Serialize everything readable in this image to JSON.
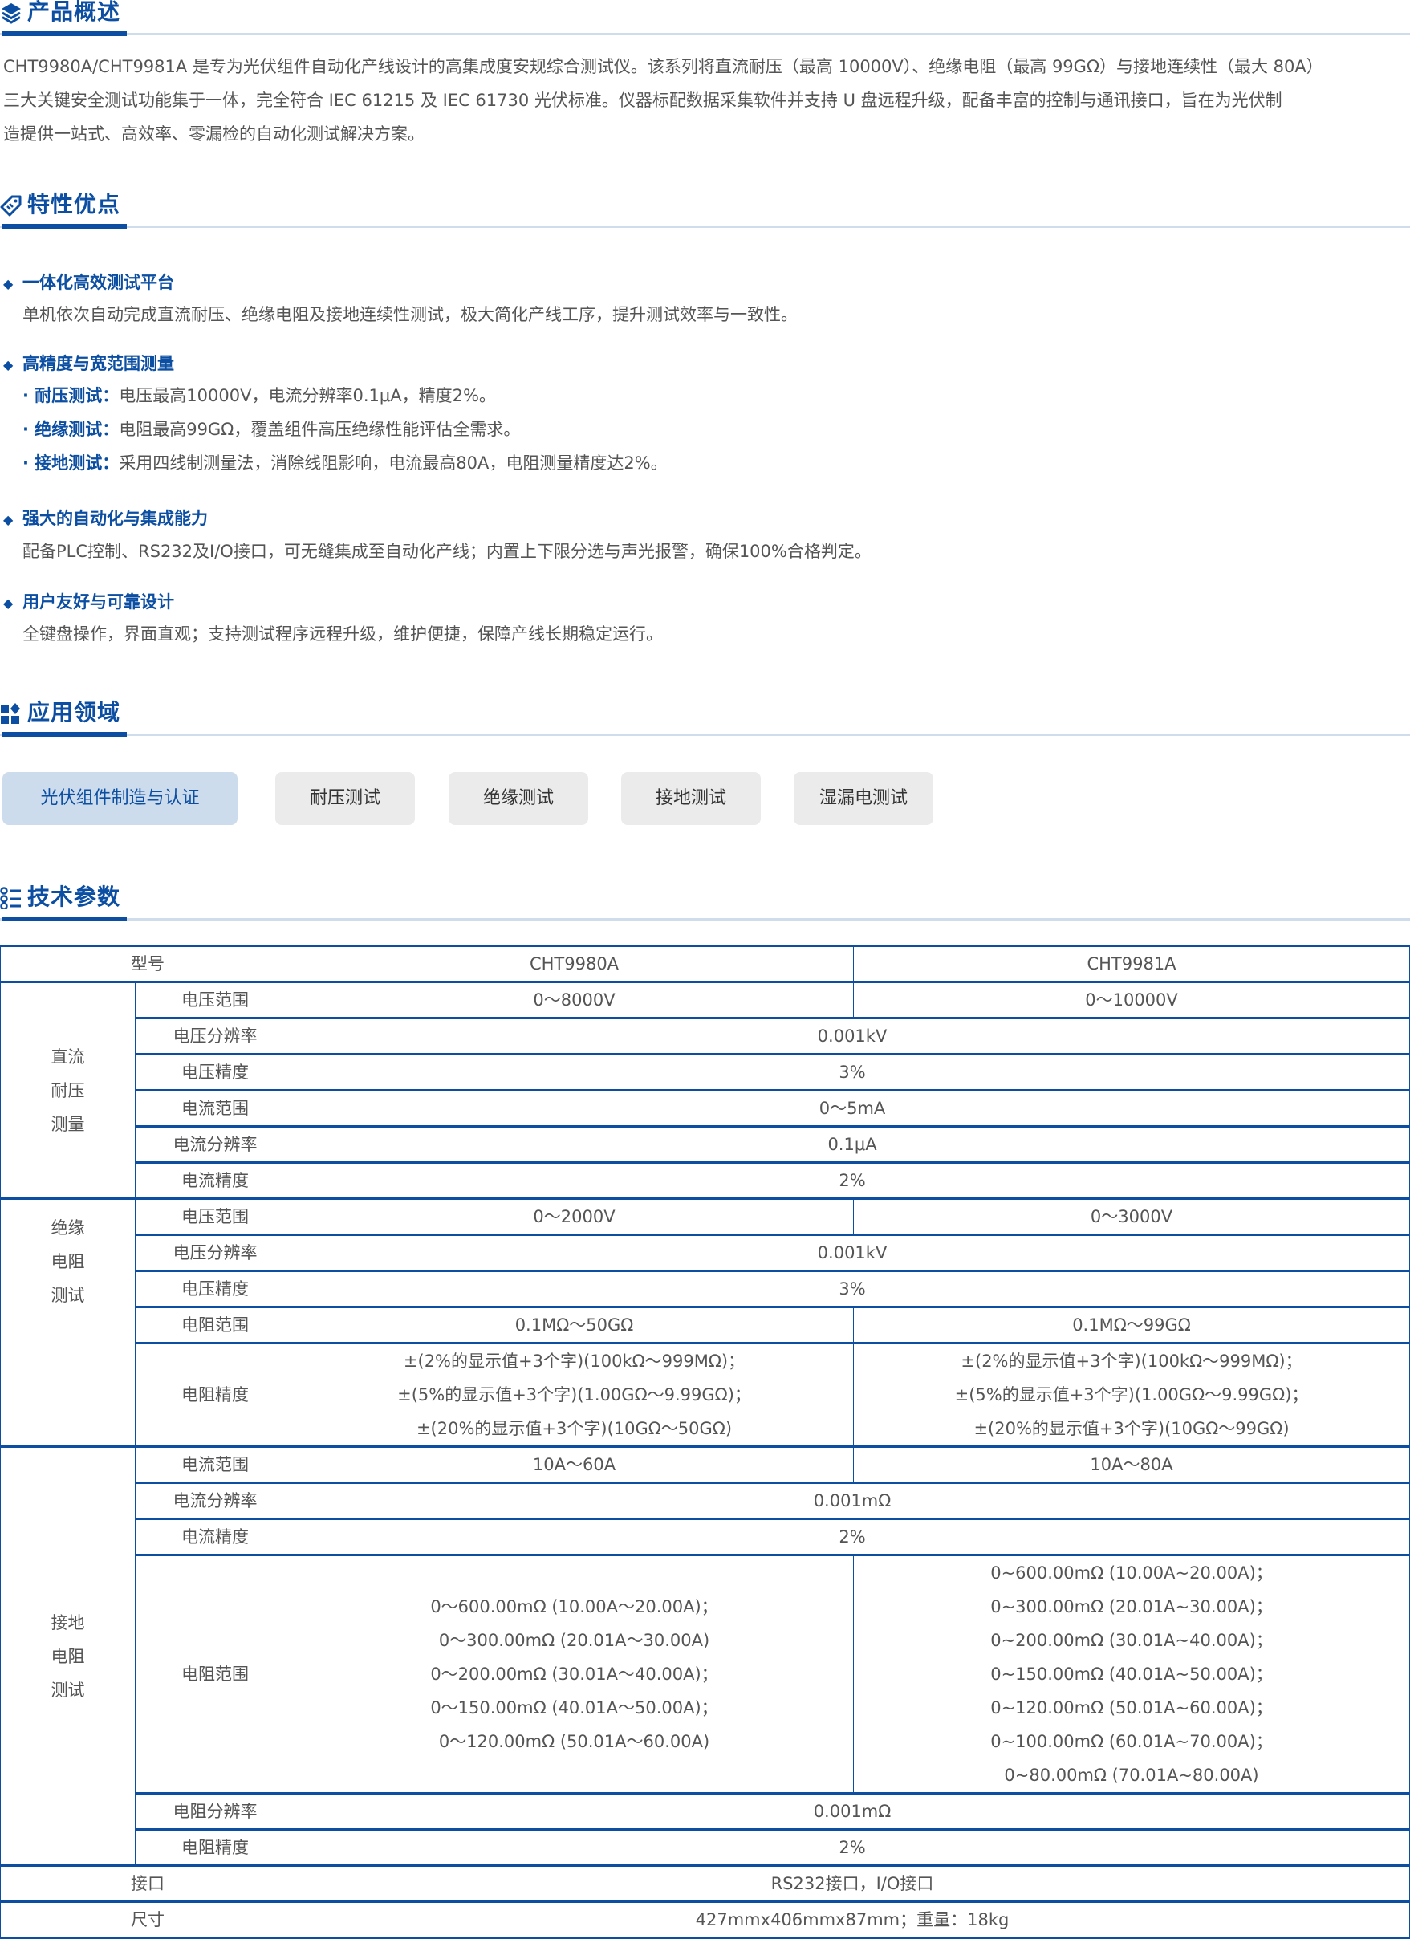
{
  "overview": {
    "title": "产品概述",
    "icon": "layers-icon",
    "lines": [
      "CHT9980A/CHT9981A 是专为光伏组件自动化产线设计的高集成度安规综合测试仪。该系列将直流耐压（最高 10000V）、绝缘电阻（最高 99GΩ）与接地连续性（最大 80A）",
      "三大关键安全测试功能集于一体，完全符合 IEC 61215 及 IEC 61730 光伏标准。仪器标配数据采集软件并支持 U 盘远程升级，配备丰富的控制与通讯接口，旨在为光伏制",
      "造提供一站式、高效率、零漏检的自动化测试解决方案。"
    ]
  },
  "features": {
    "title": "特性优点",
    "icon": "tag-icon",
    "items": [
      {
        "title": "一体化高效测试平台",
        "desc": "单机依次自动完成直流耐压、绝缘电阻及接地连续性测试，极大简化产线工序，提升测试效率与一致性。"
      },
      {
        "title": "高精度与宽范围测量",
        "subs": [
          {
            "label": "· 耐压测试：",
            "text": "电压最高10000V，电流分辨率0.1μA，精度2%。"
          },
          {
            "label": "· 绝缘测试：",
            "text": "电阻最高99GΩ，覆盖组件高压绝缘性能评估全需求。"
          },
          {
            "label": "· 接地测试：",
            "text": "采用四线制测量法，消除线阻影响，电流最高80A，电阻测量精度达2%。"
          }
        ]
      },
      {
        "title": "强大的自动化与集成能力",
        "desc": "配备PLC控制、RS232及I/O接口，可无缝集成至自动化产线；内置上下限分选与声光报警，确保100%合格判定。"
      },
      {
        "title": "用户友好与可靠设计",
        "desc": "全键盘操作，界面直观；支持测试程序远程升级，维护便捷，保障产线长期稳定运行。"
      }
    ]
  },
  "applications": {
    "title": "应用领域",
    "icon": "apps-grid-icon",
    "tags": [
      "光伏组件制造与认证",
      "耐压测试",
      "绝缘测试",
      "接地测试",
      "湿漏电测试"
    ],
    "active_index": 0
  },
  "specs": {
    "title": "技术参数",
    "icon": "list-icon",
    "header": {
      "label": "型号",
      "models": [
        "CHT9980A",
        "CHT9981A"
      ]
    },
    "groups": {
      "dc": {
        "name": [
          "直流",
          "耐压",
          "测量"
        ],
        "rows": [
          {
            "label": "电压范围",
            "a": "0～8000V",
            "b": "0～10000V"
          },
          {
            "label": "电压分辨率",
            "v": "0.001kV"
          },
          {
            "label": "电压精度",
            "v": "3%"
          },
          {
            "label": "电流范围",
            "v": "0～5mA"
          },
          {
            "label": "电流分辨率",
            "v": "0.1μA"
          },
          {
            "label": "电流精度",
            "v": "2%"
          }
        ]
      },
      "ir": {
        "name": [
          "绝缘",
          "电阻",
          "测试"
        ],
        "rows": [
          {
            "label": "电压范围",
            "a": "0～2000V",
            "b": "0～3000V"
          },
          {
            "label": "电压分辨率",
            "v": "0.001kV"
          },
          {
            "label": "电压精度",
            "v": "3%"
          },
          {
            "label": "电阻范围",
            "a": "0.1MΩ～50GΩ",
            "b": "0.1MΩ～99GΩ"
          },
          {
            "label": "电阻精度",
            "a": [
              "±(2%的显示值+3个字)(100kΩ～999MΩ)；",
              "±(5%的显示值+3个字)(1.00GΩ～9.99GΩ)；",
              "±(20%的显示值+3个字)(10GΩ～50GΩ)"
            ],
            "b": [
              "±(2%的显示值+3个字)(100kΩ～999MΩ)；",
              "±(5%的显示值+3个字)(1.00GΩ～9.99GΩ)；",
              "±(20%的显示值+3个字)(10GΩ～99GΩ)"
            ]
          }
        ]
      },
      "gb": {
        "name": [
          "接地",
          "电阻",
          "测试"
        ],
        "rows": [
          {
            "label": "电流范围",
            "a": "10A～60A",
            "b": "10A～80A"
          },
          {
            "label": "电流分辨率",
            "v": "0.001mΩ"
          },
          {
            "label": "电流精度",
            "v": "2%"
          },
          {
            "label": "电阻范围",
            "a": [
              "0～600.00mΩ (10.00A～20.00A)；",
              "0～300.00mΩ (20.01A～30.00A)",
              "0～200.00mΩ (30.01A～40.00A)；",
              "0～150.00mΩ (40.01A～50.00A)；",
              "0～120.00mΩ (50.01A～60.00A)"
            ],
            "b": [
              "0~600.00mΩ (10.00A~20.00A)；",
              "0~300.00mΩ (20.01A~30.00A)；",
              "0~200.00mΩ (30.01A~40.00A)；",
              "0~150.00mΩ (40.01A~50.00A)；",
              "0~120.00mΩ (50.01A~60.00A)；",
              "0~100.00mΩ (60.01A~70.00A)；",
              "0~80.00mΩ (70.01A~80.00A)"
            ]
          },
          {
            "label": "电阻分辨率",
            "v": "0.001mΩ"
          },
          {
            "label": "电阻精度",
            "v": "2%"
          }
        ]
      }
    },
    "interface": {
      "label": "接口",
      "v": "RS232接口，I/O接口"
    },
    "size": {
      "label": "尺寸",
      "v": "427mmx406mmx87mm；重量：18kg"
    }
  },
  "colors": {
    "accent": "#0b4ea2",
    "accent_light": "#cfdcec",
    "tag_bg": "#ebebeb",
    "text": "#555555"
  }
}
